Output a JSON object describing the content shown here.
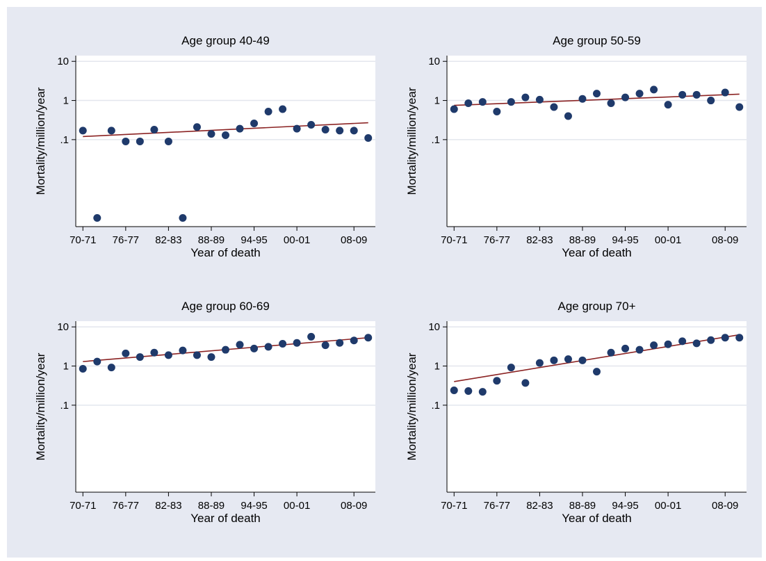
{
  "colors": {
    "background": "#e6e9f2",
    "plot_area": "#ffffff",
    "marker": "#1f3a6b",
    "fit_line": "#8b2323",
    "axis": "#000000",
    "grid": "#e3e6ee"
  },
  "chart_data": [
    {
      "type": "scatter",
      "title": "Age group 40-49",
      "xlabel": "Year of death",
      "ylabel": "Mortality/million/year",
      "y_scale": "log",
      "grid": true,
      "x_tick_labels": [
        "70-71",
        "76-77",
        "82-83",
        "88-89",
        "94-95",
        "00-01",
        "08-09"
      ],
      "y_tick_labels": [
        "10",
        "1",
        ".1"
      ],
      "x_ticks": [
        0,
        3,
        6,
        9,
        12,
        15,
        19
      ],
      "y_ticks": [
        10,
        1,
        0.1
      ],
      "xlim": [
        -0.5,
        20.5
      ],
      "ylim": [
        0.0006,
        14
      ],
      "points": [
        {
          "x": 0,
          "y": 0.17
        },
        {
          "x": 1,
          "y": 0.001
        },
        {
          "x": 2,
          "y": 0.17
        },
        {
          "x": 3,
          "y": 0.09
        },
        {
          "x": 4,
          "y": 0.09
        },
        {
          "x": 5,
          "y": 0.18
        },
        {
          "x": 6,
          "y": 0.09
        },
        {
          "x": 7,
          "y": 0.001
        },
        {
          "x": 8,
          "y": 0.21
        },
        {
          "x": 9,
          "y": 0.14
        },
        {
          "x": 10,
          "y": 0.13
        },
        {
          "x": 11,
          "y": 0.19
        },
        {
          "x": 12,
          "y": 0.26
        },
        {
          "x": 13,
          "y": 0.52
        },
        {
          "x": 14,
          "y": 0.6
        },
        {
          "x": 15,
          "y": 0.19
        },
        {
          "x": 16,
          "y": 0.24
        },
        {
          "x": 17,
          "y": 0.18
        },
        {
          "x": 18,
          "y": 0.17
        },
        {
          "x": 19,
          "y": 0.17
        },
        {
          "x": 20,
          "y": 0.11
        }
      ],
      "fit_line": {
        "x": [
          0,
          20
        ],
        "y": [
          0.12,
          0.27
        ]
      }
    },
    {
      "type": "scatter",
      "title": "Age group 50-59",
      "xlabel": "Year of death",
      "ylabel": "Mortality/million/year",
      "y_scale": "log",
      "grid": true,
      "x_tick_labels": [
        "70-71",
        "76-77",
        "82-83",
        "88-89",
        "94-95",
        "00-01",
        "08-09"
      ],
      "y_tick_labels": [
        "10",
        "1",
        ".1"
      ],
      "x_ticks": [
        0,
        3,
        6,
        9,
        12,
        15,
        19
      ],
      "y_ticks": [
        10,
        1,
        0.1
      ],
      "xlim": [
        -0.5,
        20.5
      ],
      "ylim": [
        0.0006,
        14
      ],
      "points": [
        {
          "x": 0,
          "y": 0.6
        },
        {
          "x": 1,
          "y": 0.85
        },
        {
          "x": 2,
          "y": 0.92
        },
        {
          "x": 3,
          "y": 0.52
        },
        {
          "x": 4,
          "y": 0.92
        },
        {
          "x": 5,
          "y": 1.2
        },
        {
          "x": 6,
          "y": 1.05
        },
        {
          "x": 7,
          "y": 0.68
        },
        {
          "x": 8,
          "y": 0.4
        },
        {
          "x": 9,
          "y": 1.1
        },
        {
          "x": 10,
          "y": 1.5
        },
        {
          "x": 11,
          "y": 0.85
        },
        {
          "x": 12,
          "y": 1.2
        },
        {
          "x": 13,
          "y": 1.5
        },
        {
          "x": 14,
          "y": 1.9
        },
        {
          "x": 15,
          "y": 0.78
        },
        {
          "x": 16,
          "y": 1.4
        },
        {
          "x": 17,
          "y": 1.4
        },
        {
          "x": 18,
          "y": 1.0
        },
        {
          "x": 19,
          "y": 1.6
        },
        {
          "x": 20,
          "y": 0.68
        }
      ],
      "fit_line": {
        "x": [
          0,
          20
        ],
        "y": [
          0.75,
          1.45
        ]
      }
    },
    {
      "type": "scatter",
      "title": "Age group 60-69",
      "xlabel": "Year of death",
      "ylabel": "Mortality/million/year",
      "y_scale": "log",
      "grid": true,
      "x_tick_labels": [
        "70-71",
        "76-77",
        "82-83",
        "88-89",
        "94-95",
        "00-01",
        "08-09"
      ],
      "y_tick_labels": [
        "10",
        "1",
        ".1"
      ],
      "x_ticks": [
        0,
        3,
        6,
        9,
        12,
        15,
        19
      ],
      "y_ticks": [
        10,
        1,
        0.1
      ],
      "xlim": [
        -0.5,
        20.5
      ],
      "ylim": [
        0.0006,
        14
      ],
      "points": [
        {
          "x": 0,
          "y": 0.85
        },
        {
          "x": 1,
          "y": 1.3
        },
        {
          "x": 2,
          "y": 0.92
        },
        {
          "x": 3,
          "y": 2.1
        },
        {
          "x": 4,
          "y": 1.7
        },
        {
          "x": 5,
          "y": 2.2
        },
        {
          "x": 6,
          "y": 1.9
        },
        {
          "x": 7,
          "y": 2.5
        },
        {
          "x": 8,
          "y": 1.9
        },
        {
          "x": 9,
          "y": 1.7
        },
        {
          "x": 10,
          "y": 2.6
        },
        {
          "x": 11,
          "y": 3.5
        },
        {
          "x": 12,
          "y": 2.8
        },
        {
          "x": 13,
          "y": 3.1
        },
        {
          "x": 14,
          "y": 3.7
        },
        {
          "x": 15,
          "y": 3.9
        },
        {
          "x": 16,
          "y": 5.6
        },
        {
          "x": 17,
          "y": 3.4
        },
        {
          "x": 18,
          "y": 3.9
        },
        {
          "x": 19,
          "y": 4.5
        },
        {
          "x": 20,
          "y": 5.3
        }
      ],
      "fit_line": {
        "x": [
          0,
          20
        ],
        "y": [
          1.3,
          5.3
        ]
      }
    },
    {
      "type": "scatter",
      "title": "Age group 70+",
      "xlabel": "Year of death",
      "ylabel": "Mortality/million/year",
      "y_scale": "log",
      "grid": true,
      "x_tick_labels": [
        "70-71",
        "76-77",
        "82-83",
        "88-89",
        "94-95",
        "00-01",
        "08-09"
      ],
      "y_tick_labels": [
        "10",
        "1",
        ".1"
      ],
      "x_ticks": [
        0,
        3,
        6,
        9,
        12,
        15,
        19
      ],
      "y_ticks": [
        10,
        1,
        0.1
      ],
      "xlim": [
        -0.5,
        20.5
      ],
      "ylim": [
        0.0006,
        14
      ],
      "points": [
        {
          "x": 0,
          "y": 0.24
        },
        {
          "x": 1,
          "y": 0.23
        },
        {
          "x": 2,
          "y": 0.22
        },
        {
          "x": 3,
          "y": 0.42
        },
        {
          "x": 4,
          "y": 0.92
        },
        {
          "x": 5,
          "y": 0.37
        },
        {
          "x": 6,
          "y": 1.2
        },
        {
          "x": 7,
          "y": 1.4
        },
        {
          "x": 8,
          "y": 1.5
        },
        {
          "x": 9,
          "y": 1.4
        },
        {
          "x": 10,
          "y": 0.72
        },
        {
          "x": 11,
          "y": 2.2
        },
        {
          "x": 12,
          "y": 2.8
        },
        {
          "x": 13,
          "y": 2.6
        },
        {
          "x": 14,
          "y": 3.4
        },
        {
          "x": 15,
          "y": 3.6
        },
        {
          "x": 16,
          "y": 4.3
        },
        {
          "x": 17,
          "y": 3.8
        },
        {
          "x": 18,
          "y": 4.6
        },
        {
          "x": 19,
          "y": 5.3
        },
        {
          "x": 20,
          "y": 5.3
        }
      ],
      "fit_line": {
        "x": [
          0,
          20
        ],
        "y": [
          0.4,
          6.3
        ]
      }
    }
  ]
}
